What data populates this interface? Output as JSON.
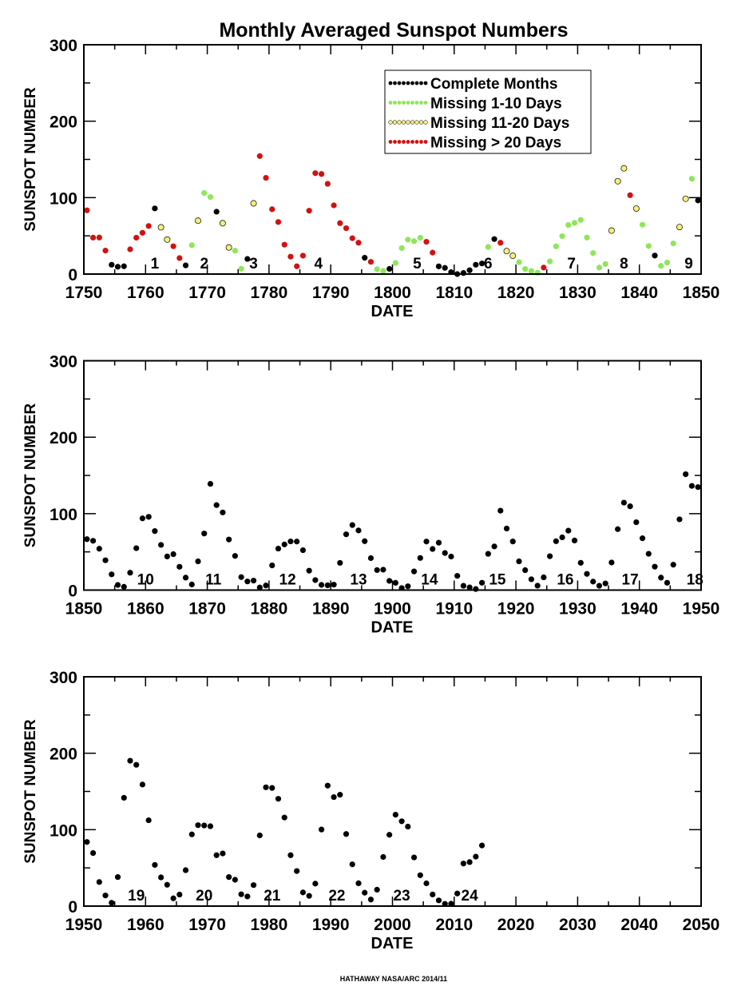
{
  "chart_data": {
    "title": "Monthly Averaged Sunspot Numbers",
    "footer": "HATHAWAY  NASA/ARC 2014/11",
    "type": "scatter",
    "ylabel": "SUNSPOT NUMBER",
    "xlabel": "DATE",
    "ylim": [
      0,
      300
    ],
    "yticks": [
      "0",
      "100",
      "200",
      "300"
    ],
    "legend": {
      "placement": "top-right",
      "entries": [
        {
          "label": "Complete Months",
          "color": "#000000"
        },
        {
          "label": "Missing 1-10 Days",
          "color": "#8ee65a"
        },
        {
          "label": "Missing 11-20 Days",
          "color": "#f5f07a"
        },
        {
          "label": "Missing > 20 Days",
          "color": "#d41010"
        }
      ]
    },
    "panels": [
      {
        "xlim": [
          1750,
          1850
        ],
        "xticks": [
          "1750",
          "1760",
          "1770",
          "1780",
          "1790",
          "1800",
          "1810",
          "1820",
          "1830",
          "1840",
          "1850"
        ],
        "start_year": 1750,
        "values": [
          83.4,
          47.7,
          47.8,
          30.7,
          12.2,
          9.6,
          10.2,
          32.4,
          47.6,
          54.0,
          62.9,
          85.9,
          61.2,
          45.1,
          36.4,
          20.9,
          11.4,
          37.8,
          69.8,
          106.1,
          100.8,
          81.6,
          66.5,
          34.8,
          30.6,
          7.0,
          19.8,
          92.5,
          154.4,
          125.9,
          84.8,
          68.1,
          38.5,
          22.8,
          10.2,
          24.1,
          82.9,
          132.0,
          130.9,
          118.1,
          89.9,
          66.6,
          60.0,
          46.9,
          41.0,
          21.3,
          16.0,
          6.4,
          4.1,
          6.8,
          14.5,
          34.0,
          45.0,
          43.1,
          47.5,
          42.2,
          28.1,
          10.1,
          8.1,
          2.5,
          0.0,
          1.4,
          5.0,
          12.2,
          13.9,
          35.4,
          45.8,
          41.0,
          30.1,
          23.9,
          15.6,
          6.6,
          4.0,
          1.8,
          8.5,
          16.6,
          36.3,
          49.6,
          64.2,
          67.0,
          70.9,
          47.8,
          27.5,
          8.5,
          13.2,
          56.9,
          121.5,
          138.3,
          103.2,
          85.7,
          64.6,
          36.7,
          24.2,
          10.7,
          15.0,
          40.1,
          61.5,
          98.5,
          124.7,
          96.3,
          66.6
        ],
        "category": [
          3,
          3,
          3,
          3,
          0,
          0,
          0,
          3,
          3,
          3,
          3,
          0,
          2,
          2,
          3,
          3,
          0,
          1,
          2,
          1,
          1,
          0,
          2,
          2,
          1,
          1,
          0,
          2,
          3,
          3,
          3,
          3,
          3,
          3,
          3,
          3,
          3,
          3,
          3,
          3,
          3,
          3,
          3,
          3,
          3,
          0,
          3,
          1,
          1,
          0,
          1,
          1,
          1,
          1,
          1,
          3,
          3,
          0,
          0,
          0,
          0,
          0,
          0,
          0,
          0,
          1,
          0,
          3,
          2,
          2,
          1,
          1,
          1,
          1,
          3,
          1,
          1,
          1,
          1,
          1,
          1,
          1,
          1,
          1,
          1,
          2,
          2,
          2,
          3,
          2,
          1,
          1,
          0,
          1,
          1,
          1,
          2,
          2,
          1,
          0,
          0
        ],
        "cycle_labels": [
          {
            "year": 1761.5,
            "label": "1"
          },
          {
            "year": 1769.5,
            "label": "2"
          },
          {
            "year": 1777.5,
            "label": "3"
          },
          {
            "year": 1788,
            "label": "4"
          },
          {
            "year": 1804,
            "label": "5"
          },
          {
            "year": 1815.5,
            "label": "6"
          },
          {
            "year": 1829,
            "label": "7"
          },
          {
            "year": 1837.5,
            "label": "8"
          },
          {
            "year": 1848,
            "label": "9"
          }
        ]
      },
      {
        "xlim": [
          1850,
          1950
        ],
        "xticks": [
          "1850",
          "1860",
          "1870",
          "1880",
          "1890",
          "1900",
          "1910",
          "1920",
          "1930",
          "1940",
          "1950"
        ],
        "start_year": 1850,
        "values": [
          66.6,
          64.5,
          54.1,
          39.0,
          20.6,
          6.7,
          4.3,
          22.7,
          54.8,
          93.8,
          95.8,
          77.2,
          59.1,
          44.0,
          47.0,
          30.5,
          16.3,
          7.3,
          37.6,
          74.0,
          139.0,
          111.2,
          101.6,
          66.2,
          44.7,
          17.0,
          11.3,
          12.4,
          3.4,
          6.0,
          32.3,
          54.3,
          59.7,
          63.7,
          63.5,
          52.2,
          25.4,
          13.1,
          6.8,
          6.3,
          7.1,
          35.6,
          73.0,
          85.1,
          78.0,
          64.0,
          41.8,
          26.2,
          26.7,
          12.1,
          9.5,
          2.7,
          5.0,
          24.4,
          42.0,
          63.5,
          53.8,
          62.0,
          48.5,
          43.9,
          18.6,
          5.7,
          3.6,
          1.4,
          9.6,
          47.4,
          57.1,
          103.9,
          80.6,
          63.6,
          37.6,
          26.1,
          14.2,
          5.8,
          16.7,
          44.3,
          63.9,
          69.0,
          77.8,
          64.9,
          35.7,
          21.2,
          11.1,
          5.7,
          8.7,
          36.1,
          79.7,
          114.4,
          109.6,
          88.8,
          67.8,
          47.5,
          30.6,
          16.3,
          9.6,
          33.2,
          92.6,
          151.6,
          136.3,
          134.7,
          83.9
        ],
        "cycle_labels": [
          {
            "year": 1860,
            "label": "10"
          },
          {
            "year": 1871,
            "label": "11"
          },
          {
            "year": 1883,
            "label": "12"
          },
          {
            "year": 1894.5,
            "label": "13"
          },
          {
            "year": 1906,
            "label": "14"
          },
          {
            "year": 1917,
            "label": "15"
          },
          {
            "year": 1928,
            "label": "16"
          },
          {
            "year": 1938.5,
            "label": "17"
          },
          {
            "year": 1949,
            "label": "18"
          }
        ]
      },
      {
        "xlim": [
          1950,
          2050
        ],
        "xticks": [
          "1950",
          "1960",
          "1970",
          "1980",
          "1990",
          "2000",
          "2010",
          "2020",
          "2030",
          "2040",
          "2050"
        ],
        "start_year": 1950,
        "values": [
          83.9,
          69.4,
          31.5,
          13.9,
          4.4,
          38.0,
          141.7,
          190.2,
          184.8,
          159.0,
          112.3,
          53.9,
          37.6,
          27.9,
          10.2,
          15.1,
          47.0,
          93.8,
          105.9,
          105.5,
          104.5,
          66.6,
          68.9,
          38.0,
          34.5,
          15.5,
          12.6,
          27.5,
          92.5,
          155.4,
          154.6,
          140.4,
          115.9,
          66.6,
          45.9,
          17.9,
          13.4,
          29.4,
          100.2,
          157.6,
          142.6,
          145.7,
          94.3,
          54.6,
          29.9,
          17.5,
          8.6,
          21.5,
          64.3,
          93.3,
          119.6,
          111.0,
          104.0,
          63.7,
          40.4,
          29.8,
          15.2,
          7.5,
          2.9,
          3.1,
          16.5,
          55.7,
          57.6,
          64.7,
          79.3
        ],
        "cycle_labels": [
          {
            "year": 1958.5,
            "label": "19"
          },
          {
            "year": 1969.5,
            "label": "20"
          },
          {
            "year": 1980.5,
            "label": "21"
          },
          {
            "year": 1991,
            "label": "22"
          },
          {
            "year": 2001.5,
            "label": "23"
          },
          {
            "year": 2012.5,
            "label": "24"
          }
        ]
      }
    ]
  }
}
